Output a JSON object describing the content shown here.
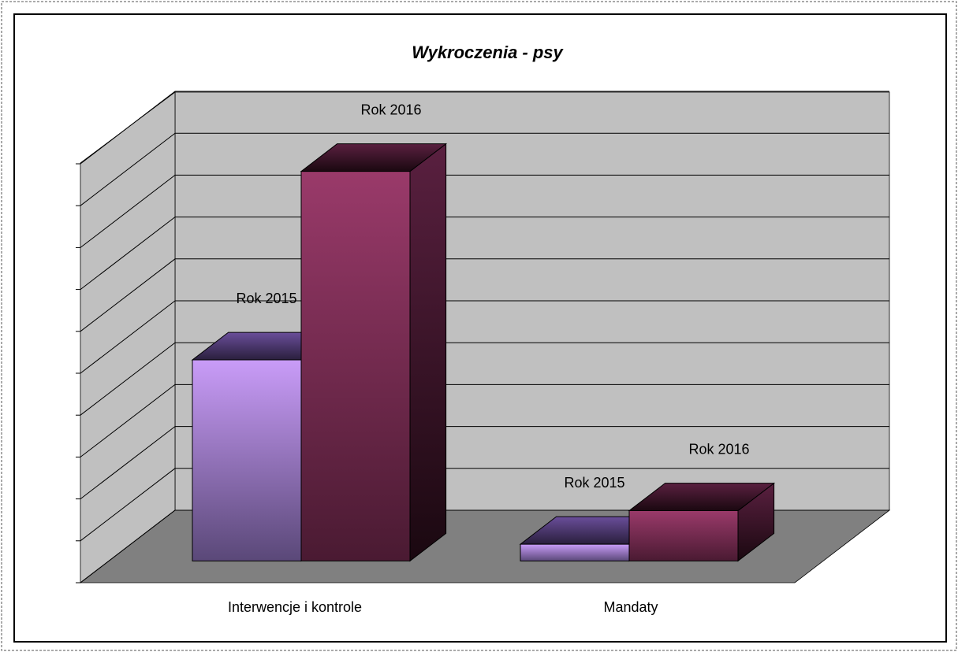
{
  "chart_data": {
    "type": "bar3d",
    "title": "Wykroczenia - psy",
    "categories": [
      "Interwencje i kontrole",
      "Mandaty"
    ],
    "series": [
      {
        "name": "Rok 2015",
        "color": "#c99cf8",
        "values": [
          4.8,
          0.4
        ]
      },
      {
        "name": "Rok 2016",
        "color": "#9a3a6a",
        "values": [
          9.3,
          1.2
        ]
      }
    ],
    "ylim": [
      0,
      10
    ],
    "yticks": [
      0,
      1,
      2,
      3,
      4,
      5,
      6,
      7,
      8,
      9,
      10
    ],
    "grid": true
  }
}
